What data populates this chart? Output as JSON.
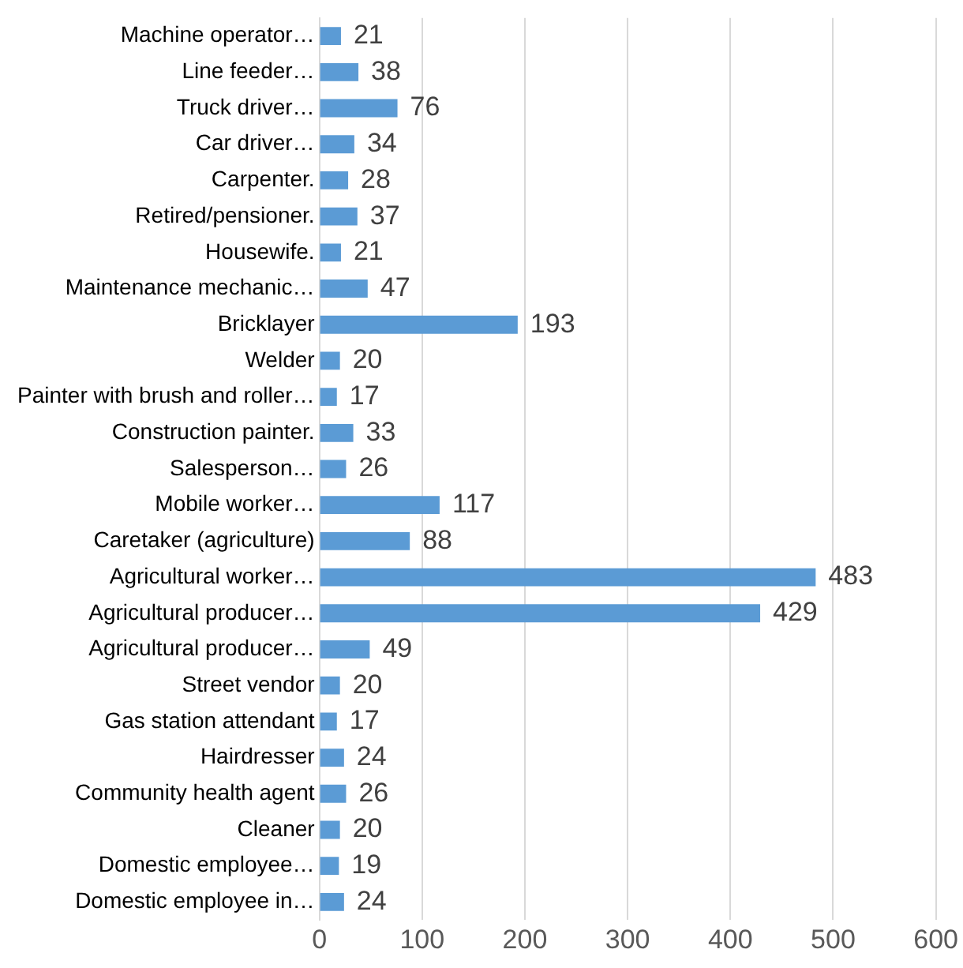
{
  "chart_data": {
    "type": "bar",
    "orientation": "horizontal",
    "categories": [
      "Machine operator…",
      "Line feeder…",
      "Truck driver…",
      "Car driver…",
      "Carpenter.",
      "Retired/pensioner.",
      "Housewife.",
      "Maintenance mechanic…",
      "Bricklayer",
      "Welder",
      "Painter with brush and roller…",
      "Construction painter.",
      "Salesperson…",
      "Mobile worker…",
      "Caretaker (agriculture)",
      "Agricultural worker…",
      "Agricultural producer…",
      "Agricultural producer…",
      "Street vendor",
      "Gas station attendant",
      "Hairdresser",
      "Community health agent",
      "Cleaner",
      "Domestic employee…",
      "Domestic employee in…"
    ],
    "values": [
      21,
      38,
      76,
      34,
      28,
      37,
      21,
      47,
      193,
      20,
      17,
      33,
      26,
      117,
      88,
      483,
      429,
      49,
      20,
      17,
      24,
      26,
      20,
      19,
      24
    ],
    "color": "#5b9bd5",
    "xlim": [
      0,
      600
    ],
    "xticks": [
      0,
      100,
      200,
      300,
      400,
      500,
      600
    ],
    "grid": "x",
    "data_labels": true,
    "legend": false
  }
}
